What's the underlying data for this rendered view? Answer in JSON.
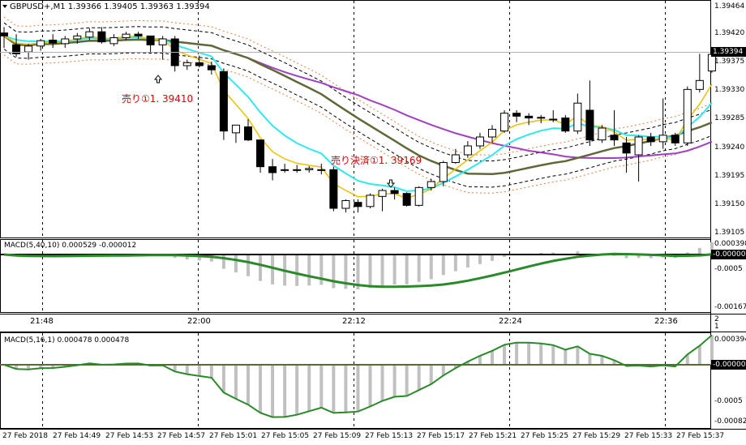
{
  "chart": {
    "symbol_header": "GBPUSD+,M1  1.39366 1.39405 1.39363 1.39394",
    "current_price": "1.39394",
    "price_axis": [
      "1.39464",
      "1.39420",
      "1.39375",
      "1.39330",
      "1.39285",
      "1.39240",
      "1.39195",
      "1.39150",
      "1.39105"
    ],
    "annotations": {
      "sell": "売り①1. 39410",
      "close": "売り決済①1. 39169"
    },
    "macd1": {
      "label": "MACD(5,40,10) 0.000529 -0.000012",
      "axis": [
        "0.000398",
        "-0.0005",
        "-0.001675"
      ],
      "current": "-0.00000"
    },
    "macd2": {
      "label": "MACD(5,16,1) 0.000478 0.000478",
      "axis": [
        "0.000394",
        "-0.0005",
        "-0.000828"
      ],
      "current": "-0.00000"
    },
    "hour_labels": [
      "21:48",
      "22:00",
      "22:12",
      "22:24",
      "22:36"
    ],
    "window_index": [
      "2",
      "1"
    ],
    "date_labels": [
      "27 Feb 2018",
      "27 Feb 14:49",
      "27 Feb 14:53",
      "27 Feb 14:57",
      "27 Feb 15:01",
      "27 Feb 15:05",
      "27 Feb 15:09",
      "27 Feb 15:13",
      "27 Feb 15:17",
      "27 Feb 15:21",
      "27 Feb 15:25",
      "27 Feb 15:29",
      "27 Feb 15:33",
      "27 Feb 15:37"
    ],
    "colors": {
      "bg": "#ffffff",
      "ema_fast": "#f0c000",
      "ema_cyan": "#30e8f0",
      "sma_olive": "#606838",
      "sma_purple": "#a040c0",
      "macd_line": "#2a8a2a",
      "hist": "#c0c0c0",
      "note": "#e00000"
    }
  },
  "chart_data": {
    "type": "candlestick",
    "candles": [
      {
        "o": 1.3943,
        "h": 1.3944,
        "l": 1.39405,
        "c": 1.39425
      },
      {
        "o": 1.3941,
        "h": 1.39428,
        "l": 1.3939,
        "c": 1.39395
      },
      {
        "o": 1.39398,
        "h": 1.39412,
        "l": 1.39385,
        "c": 1.39408
      },
      {
        "o": 1.39408,
        "h": 1.3942,
        "l": 1.394,
        "c": 1.39417
      },
      {
        "o": 1.39418,
        "h": 1.39428,
        "l": 1.39405,
        "c": 1.39413
      },
      {
        "o": 1.39412,
        "h": 1.39425,
        "l": 1.39405,
        "c": 1.3942
      },
      {
        "o": 1.3942,
        "h": 1.3943,
        "l": 1.39412,
        "c": 1.39425
      },
      {
        "o": 1.39423,
        "h": 1.39438,
        "l": 1.39418,
        "c": 1.39432
      },
      {
        "o": 1.39432,
        "h": 1.3944,
        "l": 1.39412,
        "c": 1.39415
      },
      {
        "o": 1.39412,
        "h": 1.39428,
        "l": 1.39408,
        "c": 1.39422
      },
      {
        "o": 1.39422,
        "h": 1.39432,
        "l": 1.39418,
        "c": 1.39428
      },
      {
        "o": 1.39428,
        "h": 1.39432,
        "l": 1.3942,
        "c": 1.39425
      },
      {
        "o": 1.39425,
        "h": 1.39425,
        "l": 1.39395,
        "c": 1.3941
      },
      {
        "o": 1.3941,
        "h": 1.39425,
        "l": 1.39385,
        "c": 1.3942
      },
      {
        "o": 1.3942,
        "h": 1.39425,
        "l": 1.39365,
        "c": 1.39375
      },
      {
        "o": 1.39375,
        "h": 1.39385,
        "l": 1.39368,
        "c": 1.3938
      },
      {
        "o": 1.3938,
        "h": 1.39392,
        "l": 1.39372,
        "c": 1.39375
      },
      {
        "o": 1.39375,
        "h": 1.39382,
        "l": 1.3936,
        "c": 1.39368
      },
      {
        "o": 1.39365,
        "h": 1.3937,
        "l": 1.3925,
        "c": 1.39265
      },
      {
        "o": 1.39262,
        "h": 1.39275,
        "l": 1.39245,
        "c": 1.39275
      },
      {
        "o": 1.39272,
        "h": 1.39285,
        "l": 1.39248,
        "c": 1.3925
      },
      {
        "o": 1.3925,
        "h": 1.3925,
        "l": 1.39195,
        "c": 1.39205
      },
      {
        "o": 1.39205,
        "h": 1.39218,
        "l": 1.39182,
        "c": 1.39195
      },
      {
        "o": 1.392,
        "h": 1.3921,
        "l": 1.39195,
        "c": 1.392
      },
      {
        "o": 1.392,
        "h": 1.39208,
        "l": 1.39195,
        "c": 1.392
      },
      {
        "o": 1.392,
        "h": 1.39206,
        "l": 1.39195,
        "c": 1.39202
      },
      {
        "o": 1.392,
        "h": 1.3921,
        "l": 1.39192,
        "c": 1.392
      },
      {
        "o": 1.392,
        "h": 1.39205,
        "l": 1.3913,
        "c": 1.39135
      },
      {
        "o": 1.39135,
        "h": 1.3915,
        "l": 1.39128,
        "c": 1.39148
      },
      {
        "o": 1.39145,
        "h": 1.3915,
        "l": 1.39128,
        "c": 1.39138
      },
      {
        "o": 1.39138,
        "h": 1.3916,
        "l": 1.39135,
        "c": 1.39157
      },
      {
        "o": 1.39155,
        "h": 1.39168,
        "l": 1.3913,
        "c": 1.39165
      },
      {
        "o": 1.39165,
        "h": 1.3917,
        "l": 1.3915,
        "c": 1.3916
      },
      {
        "o": 1.3916,
        "h": 1.39162,
        "l": 1.39138,
        "c": 1.3914
      },
      {
        "o": 1.3914,
        "h": 1.39172,
        "l": 1.39138,
        "c": 1.3917
      },
      {
        "o": 1.3917,
        "h": 1.39185,
        "l": 1.39165,
        "c": 1.3918
      },
      {
        "o": 1.3918,
        "h": 1.39215,
        "l": 1.39172,
        "c": 1.39212
      },
      {
        "o": 1.39212,
        "h": 1.39235,
        "l": 1.3921,
        "c": 1.39225
      },
      {
        "o": 1.39225,
        "h": 1.39248,
        "l": 1.3922,
        "c": 1.3924
      },
      {
        "o": 1.3924,
        "h": 1.39262,
        "l": 1.39235,
        "c": 1.39255
      },
      {
        "o": 1.39255,
        "h": 1.39275,
        "l": 1.39245,
        "c": 1.39268
      },
      {
        "o": 1.39265,
        "h": 1.393,
        "l": 1.39262,
        "c": 1.39295
      },
      {
        "o": 1.39295,
        "h": 1.393,
        "l": 1.3928,
        "c": 1.3929
      },
      {
        "o": 1.3929,
        "h": 1.39295,
        "l": 1.39275,
        "c": 1.39287
      },
      {
        "o": 1.39287,
        "h": 1.39292,
        "l": 1.39278,
        "c": 1.39288
      },
      {
        "o": 1.39285,
        "h": 1.393,
        "l": 1.3928,
        "c": 1.39285
      },
      {
        "o": 1.39287,
        "h": 1.39292,
        "l": 1.39262,
        "c": 1.39265
      },
      {
        "o": 1.39265,
        "h": 1.39328,
        "l": 1.3926,
        "c": 1.39312
      },
      {
        "o": 1.393,
        "h": 1.3935,
        "l": 1.3924,
        "c": 1.3925
      },
      {
        "o": 1.3925,
        "h": 1.39275,
        "l": 1.39245,
        "c": 1.3927
      },
      {
        "o": 1.39258,
        "h": 1.393,
        "l": 1.3924,
        "c": 1.3925
      },
      {
        "o": 1.39245,
        "h": 1.39255,
        "l": 1.39195,
        "c": 1.39228
      },
      {
        "o": 1.39225,
        "h": 1.39258,
        "l": 1.3918,
        "c": 1.39255
      },
      {
        "o": 1.39255,
        "h": 1.39262,
        "l": 1.3924,
        "c": 1.39247
      },
      {
        "o": 1.39247,
        "h": 1.3932,
        "l": 1.39235,
        "c": 1.39258
      },
      {
        "o": 1.39258,
        "h": 1.39262,
        "l": 1.3924,
        "c": 1.39245
      },
      {
        "o": 1.39245,
        "h": 1.3934,
        "l": 1.3924,
        "c": 1.39335
      },
      {
        "o": 1.39335,
        "h": 1.39395,
        "l": 1.3933,
        "c": 1.3935
      },
      {
        "o": 1.39366,
        "h": 1.39405,
        "l": 1.39363,
        "c": 1.39394
      }
    ],
    "ylim": [
      1.3909,
      1.3948
    ]
  }
}
